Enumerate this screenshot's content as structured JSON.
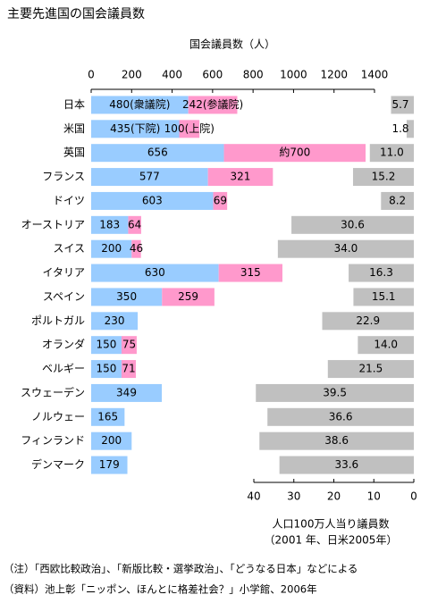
{
  "chart_data": {
    "type": "bar",
    "title": "主要先進国の国会議員数",
    "xlabel": "国会議員数（人）",
    "x2label": [
      "人口100万人当り議員数",
      "（2001 年、日米2005年）"
    ],
    "notes": [
      "（注）「西欧比較政治」、「新版比較・選挙政治」、「どうなる日本」などによる",
      "（資料）池上彰「ニッポン、ほんとに格差社会？」小学館、2006年"
    ],
    "categories": [
      "日本",
      "米国",
      "英国",
      "フランス",
      "ドイツ",
      "オーストリア",
      "スイス",
      "イタリア",
      "スペイン",
      "ポルトガル",
      "オランダ",
      "ベルギー",
      "スウェーデン",
      "ノルウェー",
      "フィンランド",
      "デンマーク"
    ],
    "series": [
      {
        "color": "#99ccff",
        "values": [
          480,
          435,
          656,
          577,
          603,
          183,
          200,
          630,
          350,
          230,
          150,
          150,
          349,
          165,
          200,
          179
        ],
        "value_labels": [
          "480(衆議院)",
          "435(下院)",
          "656",
          "577",
          "603",
          "183",
          "200",
          "630",
          "350",
          "230",
          "150",
          "150",
          "349",
          "165",
          "200",
          "179"
        ]
      },
      {
        "color": "#ff99cc",
        "values": [
          242,
          100,
          700,
          321,
          69,
          64,
          46,
          315,
          259,
          null,
          75,
          71,
          null,
          null,
          null,
          null
        ],
        "value_labels": [
          "242(参議院)",
          "100(上院)",
          "約700",
          "321",
          "69",
          "64",
          "46",
          "315",
          "259",
          null,
          "75",
          "71",
          null,
          null,
          null,
          null
        ]
      },
      {
        "color": "#c0c0c0",
        "axis": "x2",
        "values": [
          5.7,
          1.8,
          11.0,
          15.2,
          8.2,
          30.6,
          34.0,
          16.3,
          15.1,
          22.9,
          14.0,
          21.5,
          39.5,
          36.6,
          38.6,
          33.6
        ],
        "value_labels": [
          "5.7",
          "1.8",
          "11.0",
          "15.2",
          "8.2",
          "30.6",
          "34.0",
          "16.3",
          "15.1",
          "22.9",
          "14.0",
          "21.5",
          "39.5",
          "36.6",
          "38.6",
          "33.6"
        ]
      }
    ],
    "xlim": [
      0,
      1400
    ],
    "xticks": [
      0,
      200,
      400,
      600,
      800,
      1000,
      1200,
      1400
    ],
    "x2lim": [
      40,
      0
    ],
    "x2ticks": [
      40,
      30,
      20,
      10,
      0
    ]
  }
}
